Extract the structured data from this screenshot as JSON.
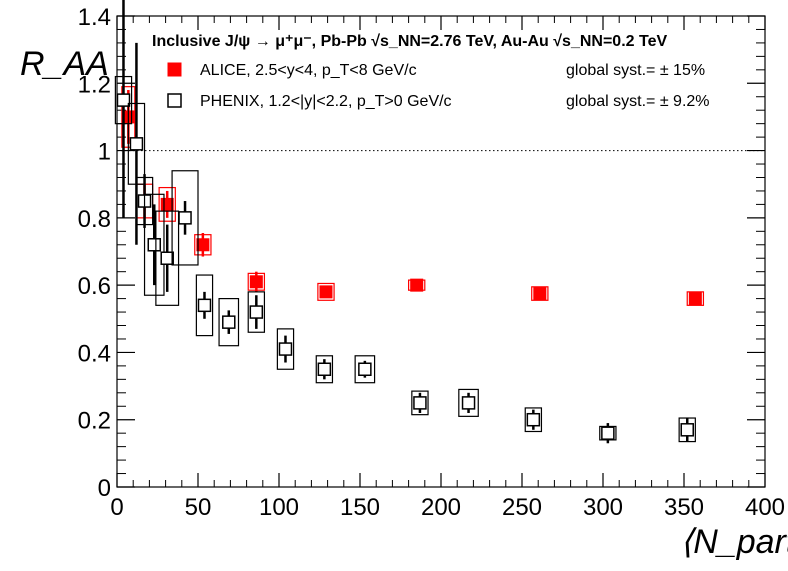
{
  "chart_data": {
    "type": "scatter",
    "header": "Inclusive J/ψ → μ⁺μ⁻, Pb-Pb √s_NN=2.76 TeV, Au-Au √s_NN=0.2 TeV",
    "xlabel": "⟨N_part⟩",
    "ylabel": "R_AA",
    "xlim": [
      0,
      400
    ],
    "ylim": [
      0,
      1.4
    ],
    "x_ticks": [
      0,
      50,
      100,
      150,
      200,
      250,
      300,
      350,
      400
    ],
    "y_ticks": [
      0,
      0.2,
      0.4,
      0.6,
      0.8,
      1,
      1.2,
      1.4
    ],
    "x_tick_labels": [
      "0",
      "50",
      "100",
      "150",
      "200",
      "250",
      "300",
      "350",
      "400"
    ],
    "y_tick_labels": [
      "0",
      "0.2",
      "0.4",
      "0.6",
      "0.8",
      "1",
      "1.2",
      "1.4"
    ],
    "reference_line": 1.0,
    "grid": false,
    "legend_position": "top",
    "series": [
      {
        "name": "ALICE, 2.5<y<4, p_T<8 GeV/c",
        "global_syst": "global syst.= ± 15%",
        "marker": "filled-square",
        "color": "#ff0000",
        "points": [
          {
            "x": 7,
            "y": 1.1,
            "stat": 0.08,
            "sys_half_w": 4,
            "sys": 0.09
          },
          {
            "x": 17,
            "y": 0.85,
            "stat": 0.05,
            "sys_half_w": 5,
            "sys": 0.05
          },
          {
            "x": 31,
            "y": 0.84,
            "stat": 0.04,
            "sys_half_w": 5,
            "sys": 0.05
          },
          {
            "x": 53,
            "y": 0.72,
            "stat": 0.035,
            "sys_half_w": 5,
            "sys": 0.03
          },
          {
            "x": 86,
            "y": 0.61,
            "stat": 0.03,
            "sys_half_w": 5,
            "sys": 0.025
          },
          {
            "x": 129,
            "y": 0.58,
            "stat": 0.015,
            "sys_half_w": 5,
            "sys": 0.025
          },
          {
            "x": 185,
            "y": 0.6,
            "stat": 0.012,
            "sys_half_w": 5,
            "sys": 0.015
          },
          {
            "x": 261,
            "y": 0.575,
            "stat": 0.01,
            "sys_half_w": 5,
            "sys": 0.02
          },
          {
            "x": 357,
            "y": 0.56,
            "stat": 0.01,
            "sys_half_w": 5,
            "sys": 0.02
          }
        ]
      },
      {
        "name": "PHENIX, 1.2<|y|<2.2, p_T>0 GeV/c",
        "global_syst": "global syst.= ± 9.2%",
        "marker": "open-square",
        "color": "#000000",
        "points": [
          {
            "x": 4,
            "y": 1.15,
            "stat": 0.35,
            "sys_half_w": 5,
            "sys": 0.07
          },
          {
            "x": 12,
            "y": 1.02,
            "stat": 0.3,
            "sys_half_w": 5,
            "sys": 0.12
          },
          {
            "x": 17,
            "y": 0.85,
            "stat": 0.08,
            "sys_half_w": 5,
            "sys": 0.07
          },
          {
            "x": 23,
            "y": 0.72,
            "stat": 0.12,
            "sys_half_w": 6,
            "sys": 0.15
          },
          {
            "x": 31,
            "y": 0.68,
            "stat": 0.1,
            "sys_half_w": 7,
            "sys": 0.14
          },
          {
            "x": 42,
            "y": 0.8,
            "stat": 0.05,
            "sys_half_w": 8,
            "sys": 0.14
          },
          {
            "x": 54,
            "y": 0.54,
            "stat": 0.04,
            "sys_half_w": 5,
            "sys": 0.09
          },
          {
            "x": 69,
            "y": 0.49,
            "stat": 0.035,
            "sys_half_w": 6,
            "sys": 0.07
          },
          {
            "x": 86,
            "y": 0.52,
            "stat": 0.05,
            "sys_half_w": 5,
            "sys": 0.06
          },
          {
            "x": 104,
            "y": 0.41,
            "stat": 0.04,
            "sys_half_w": 5,
            "sys": 0.06
          },
          {
            "x": 128,
            "y": 0.35,
            "stat": 0.03,
            "sys_half_w": 5,
            "sys": 0.04
          },
          {
            "x": 153,
            "y": 0.35,
            "stat": 0.025,
            "sys_half_w": 6,
            "sys": 0.04
          },
          {
            "x": 187,
            "y": 0.25,
            "stat": 0.03,
            "sys_half_w": 5,
            "sys": 0.035
          },
          {
            "x": 217,
            "y": 0.25,
            "stat": 0.03,
            "sys_half_w": 6,
            "sys": 0.04
          },
          {
            "x": 257,
            "y": 0.2,
            "stat": 0.03,
            "sys_half_w": 5,
            "sys": 0.035
          },
          {
            "x": 303,
            "y": 0.16,
            "stat": 0.03,
            "sys_half_w": 5,
            "sys": 0.02
          },
          {
            "x": 352,
            "y": 0.17,
            "stat": 0.035,
            "sys_half_w": 5,
            "sys": 0.035
          }
        ]
      }
    ]
  }
}
